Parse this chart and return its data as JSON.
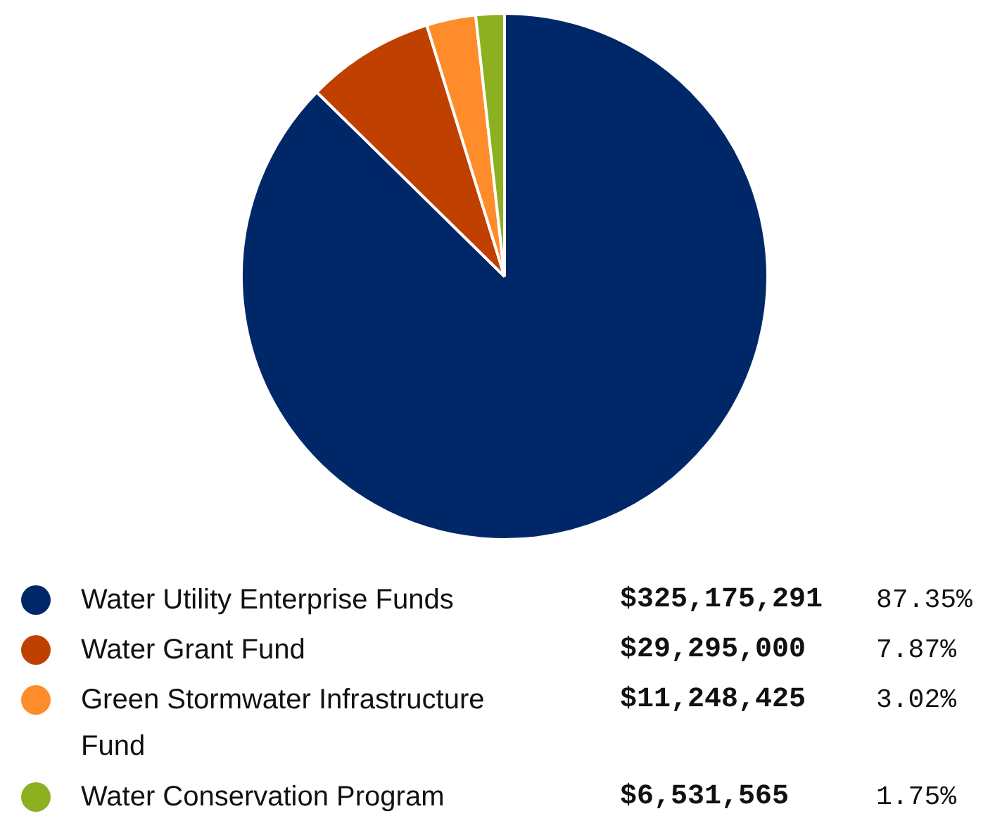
{
  "chart_data": {
    "type": "pie",
    "categories": [
      "Water Utility Enterprise Funds",
      "Water Grant Fund",
      "Green Stormwater Infrastructure Fund",
      "Water Conservation Program"
    ],
    "values": [
      325175291,
      29295000,
      11248425,
      6531565
    ],
    "colors": [
      "#002868",
      "#c04000",
      "#ff8c2a",
      "#8cb020"
    ],
    "value_labels": [
      "$325,175,291",
      "$29,295,000",
      "$11,248,425",
      "$6,531,565"
    ],
    "annotations": [
      {
        "text": "87.35%",
        "x": "Water Utility Enterprise Funds"
      },
      {
        "text": "7.87%",
        "x": "Water Grant Fund"
      },
      {
        "text": "3.02%",
        "x": "Green Stormwater Infrastructure Fund"
      },
      {
        "text": "1.75%",
        "x": "Water Conservation Program"
      }
    ],
    "legend": "bottom"
  }
}
